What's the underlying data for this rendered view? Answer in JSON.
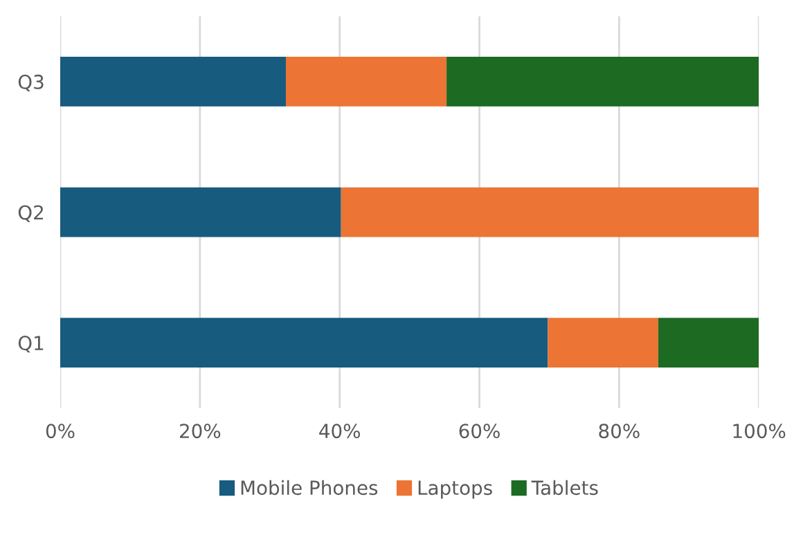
{
  "chart_data": {
    "type": "bar",
    "orientation": "horizontal",
    "stacked": true,
    "categories": [
      "Q3",
      "Q2",
      "Q1"
    ],
    "series": [
      {
        "name": "Mobile Phones",
        "color": "#175b7e",
        "values": [
          32.3,
          40.2,
          69.8
        ]
      },
      {
        "name": "Laptops",
        "color": "#ec7434",
        "values": [
          23,
          59.8,
          15.8
        ]
      },
      {
        "name": "Tablets",
        "color": "#1d6a23",
        "values": [
          44.7,
          0,
          14.4
        ]
      }
    ],
    "xlim": [
      0,
      100
    ],
    "xticks": [
      {
        "value": 0,
        "label": "0%"
      },
      {
        "value": 20,
        "label": "20%"
      },
      {
        "value": 40,
        "label": "40%"
      },
      {
        "value": 60,
        "label": "60%"
      },
      {
        "value": 80,
        "label": "80%"
      },
      {
        "value": 100,
        "label": "100%"
      }
    ],
    "grid": "x",
    "legend": "bottom"
  }
}
